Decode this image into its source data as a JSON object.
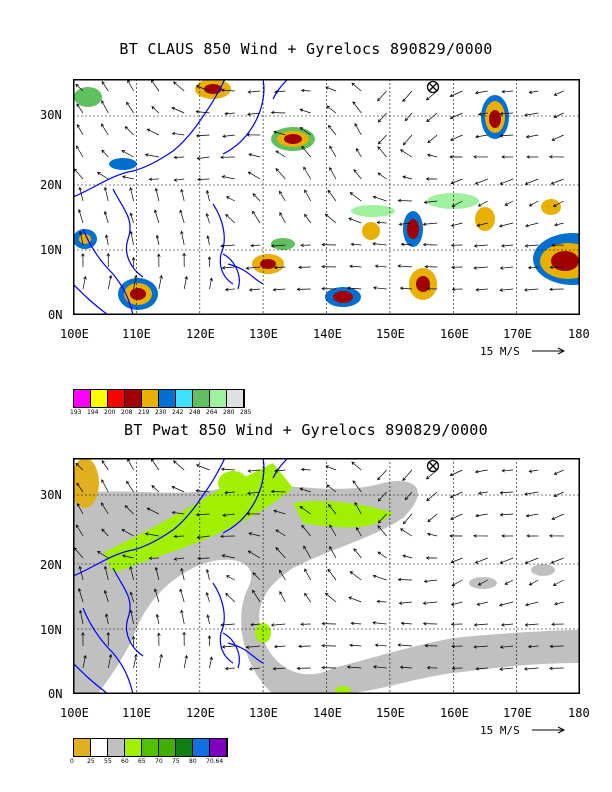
{
  "top": {
    "title": "BT CLAUS 850 Wind + Gyrelocs 890829/0000",
    "lat_labels": [
      "30N",
      "20N",
      "10N",
      "0N"
    ],
    "lon_labels": [
      "100E",
      "110E",
      "120E",
      "130E",
      "140E",
      "150E",
      "160E",
      "170E",
      "180"
    ],
    "scale_label": "15 M/S",
    "colorbar": {
      "colors": [
        "#ff00ff",
        "#ffff00",
        "#ff0000",
        "#a00000",
        "#e8b000",
        "#0070d0",
        "#40e0ff",
        "#60c060",
        "#a0f0a0",
        "#e0e0e0"
      ],
      "labels": [
        "193",
        "194",
        "200",
        "208",
        "219",
        "230",
        "242",
        "248",
        "264",
        "280",
        "285"
      ]
    }
  },
  "bottom": {
    "title": "BT Pwat 850 Wind + Gyrelocs 890829/0000",
    "lat_labels": [
      "30N",
      "20N",
      "10N",
      "0N"
    ],
    "lon_labels": [
      "100E",
      "110E",
      "120E",
      "130E",
      "140E",
      "150E",
      "160E",
      "170E",
      "180"
    ],
    "scale_label": "15 M/S",
    "colorbar": {
      "colors": [
        "#e0b020",
        "#ffffff",
        "#c0c0c0",
        "#a0f000",
        "#50c000",
        "#40b000",
        "#108010",
        "#1070e0",
        "#8000c0"
      ],
      "labels": [
        "0",
        "25",
        "55",
        "60",
        "65",
        "70",
        "75",
        "80",
        "70.64"
      ]
    }
  }
}
